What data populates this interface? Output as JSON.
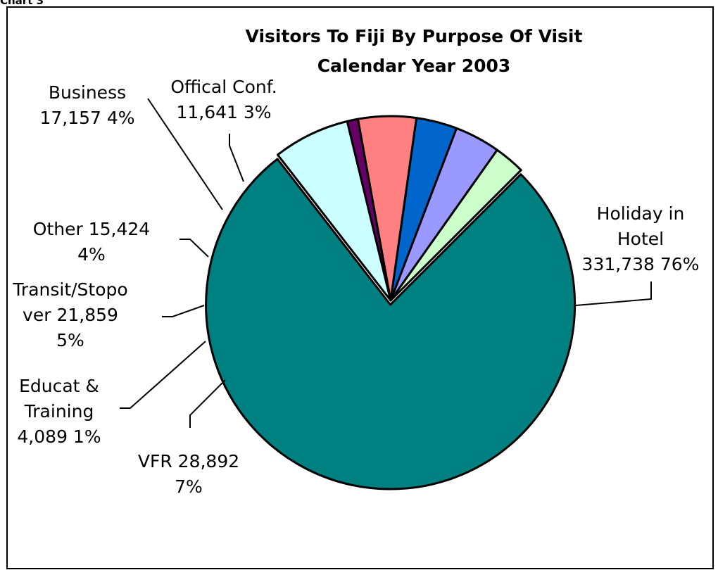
{
  "page_caption": "Chart 3",
  "chart_data": {
    "type": "pie",
    "title_lines": [
      "Visitors To Fiji By Purpose Of Visit",
      "Calendar Year 2003"
    ],
    "slices": [
      {
        "name": "Holiday in Hotel",
        "value": 331738,
        "percent": 76,
        "color": "#008080",
        "exploded": true,
        "label_lines": [
          "Holiday in",
          "Hotel",
          "331,738 76%"
        ]
      },
      {
        "name": "VFR",
        "value": 28892,
        "percent": 7,
        "color": "#CCFFFF",
        "label_lines": [
          "VFR 28,892",
          "7%"
        ]
      },
      {
        "name": "Educat & Training",
        "value": 4089,
        "percent": 1,
        "color": "#660066",
        "label_lines": [
          "Educat &",
          "Training",
          "4,089 1%"
        ]
      },
      {
        "name": "Transit/Stopover",
        "value": 21859,
        "percent": 5,
        "color": "#FF8080",
        "label_lines": [
          "Transit/Stopo",
          "ver 21,859",
          "5%"
        ]
      },
      {
        "name": "Other",
        "value": 15424,
        "percent": 4,
        "color": "#0066CC",
        "label_lines": [
          "Other 15,424",
          "4%"
        ]
      },
      {
        "name": "Business",
        "value": 17157,
        "percent": 4,
        "color": "#9999FF",
        "label_lines": [
          "Business",
          "17,157 4%"
        ]
      },
      {
        "name": "Offical Conf.",
        "value": 11641,
        "percent": 3,
        "color": "#CCFFCC",
        "label_lines": [
          "Offical Conf.",
          "11,641 3%"
        ]
      }
    ]
  }
}
